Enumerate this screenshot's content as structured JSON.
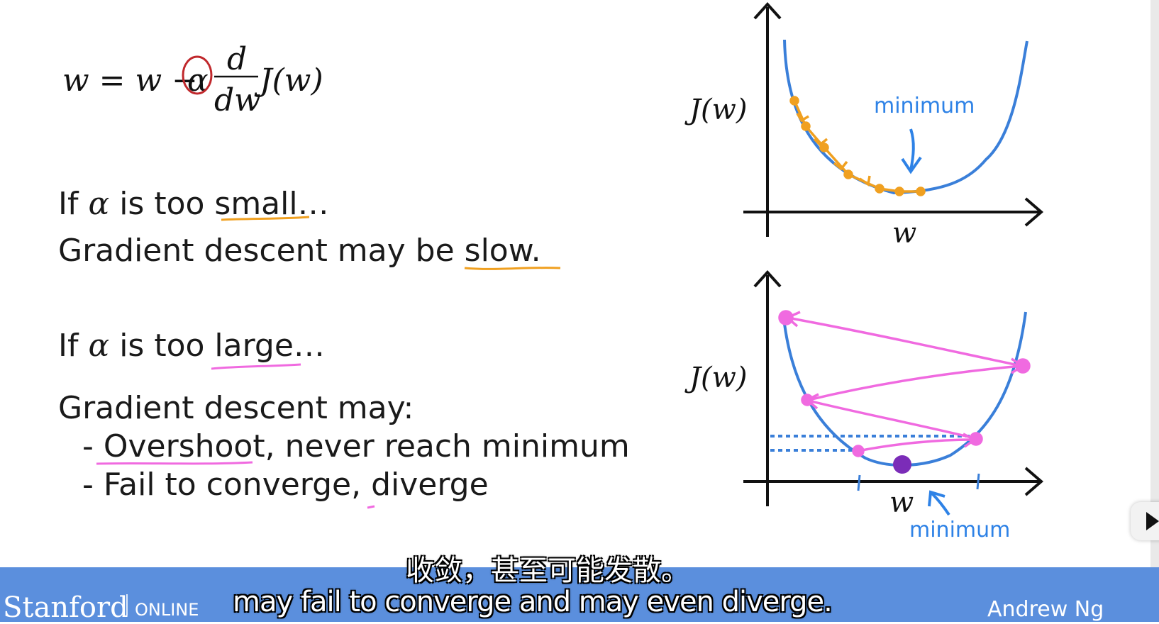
{
  "formula": {
    "lhs": "w = w −",
    "alpha": "α",
    "numerator": "d",
    "denominator": "dw",
    "function": "J(w)"
  },
  "small_section": {
    "line1_pre": "If",
    "alpha": "α",
    "line1_post": "is too small…",
    "line2": "Gradient descent may be slow."
  },
  "large_section": {
    "line1_pre": "If",
    "alpha": "α",
    "line1_post": "is too large…",
    "line2": "Gradient descent may:",
    "bullets": [
      "- Overshoot, never reach minimum",
      "- Fail to converge, diverge"
    ]
  },
  "top_graph": {
    "ylabel": "J(w)",
    "xlabel": "w",
    "annotation": "minimum"
  },
  "bottom_graph": {
    "ylabel": "J(w)",
    "xlabel": "w",
    "annotation": "minimum"
  },
  "footer": {
    "brand": "Stanford",
    "brand_suffix": "ONLINE",
    "author": "Andrew Ng"
  },
  "subtitles": {
    "chinese": "收敛，甚至可能发散。",
    "english": "may fail to converge and may even diverge."
  },
  "colors": {
    "curve": "#3a7fd9",
    "small_step": "#f0a020",
    "large_step": "#f06ae0",
    "annotation": "#2e82e6",
    "footer": "#5b8fdd",
    "underline_small": "#f0a020",
    "underline_large": "#f06ae0",
    "alpha_circle": "#c0282c"
  }
}
